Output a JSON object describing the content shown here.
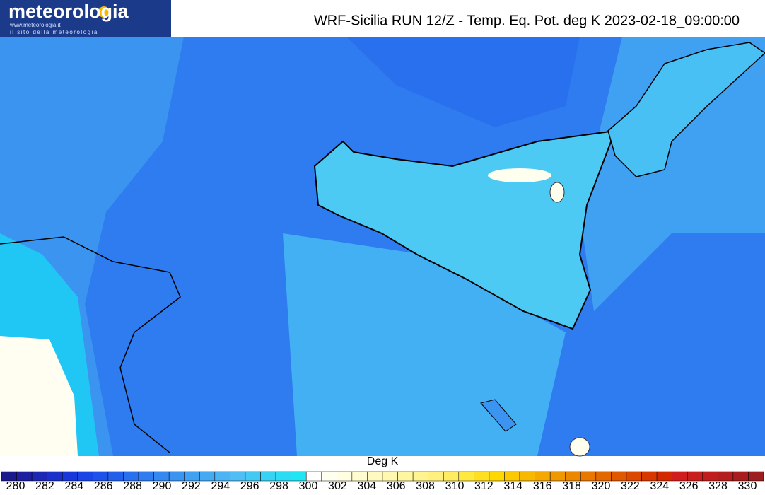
{
  "logo": {
    "name": "meteorologia",
    "url": "www.meteorologia.it",
    "tagline": "il sito della meteorologia"
  },
  "title": "WRF-Sicilia RUN 12/Z - Temp. Eq. Pot. deg K 2023-02-18_09:00:00",
  "colorbar": {
    "label": "Deg K",
    "ticks": [
      280,
      282,
      284,
      286,
      288,
      290,
      292,
      294,
      296,
      298,
      300,
      302,
      304,
      306,
      308,
      310,
      312,
      314,
      316,
      318,
      320,
      322,
      324,
      326,
      328,
      330
    ],
    "colors": [
      "#1a1a8c",
      "#1e1ea0",
      "#1c28b4",
      "#1a30c8",
      "#1838dc",
      "#1a44e6",
      "#1e50ea",
      "#2260ec",
      "#2870ee",
      "#2e7cf0",
      "#3488f0",
      "#3a94f0",
      "#40a0f2",
      "#46aaf2",
      "#4cb4f4",
      "#50bef4",
      "#44c8f4",
      "#38d2f4",
      "#2cdcf4",
      "#20e6f4",
      "#ffffff",
      "#fffff0",
      "#fffee0",
      "#fffcd0",
      "#fffac0",
      "#fff8b0",
      "#fff6a0",
      "#fff490",
      "#fff080",
      "#ffec60",
      "#ffe840",
      "#ffe020",
      "#ffd800",
      "#fcc800",
      "#f8b800",
      "#f4a800",
      "#f09800",
      "#ec8800",
      "#e87800",
      "#e46800",
      "#e05800",
      "#dc4800",
      "#d83800",
      "#d42800",
      "#d01e1e",
      "#c81e1e",
      "#c01e1e",
      "#b41e1e",
      "#a81e1e",
      "#9c1e1e"
    ]
  }
}
